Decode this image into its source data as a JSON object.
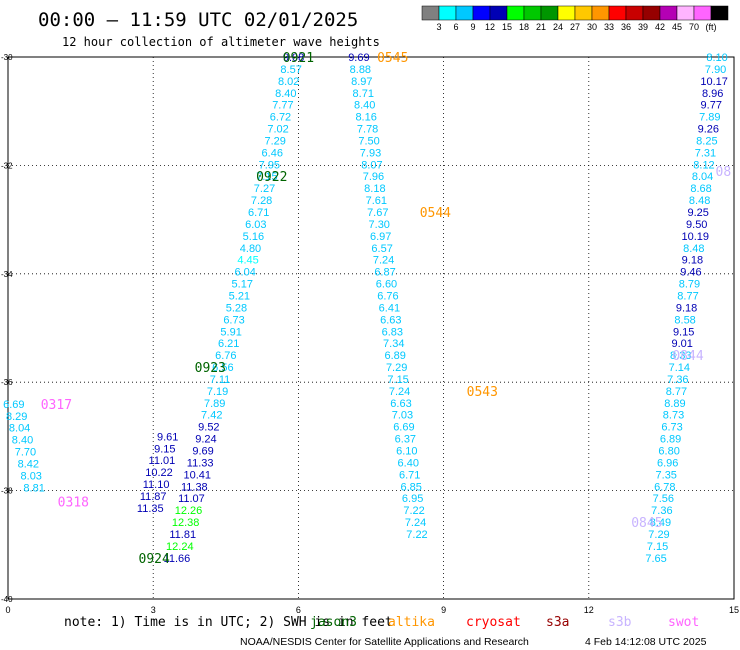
{
  "header": {
    "title": "00:00 – 11:59 UTC 02/01/2025",
    "subtitle": "12 hour collection of altimeter wave heights"
  },
  "colorbar": {
    "colors": [
      "#808080",
      "#00ffff",
      "#00c8ff",
      "#0000ff",
      "#0000b4",
      "#00ff00",
      "#00c800",
      "#009600",
      "#ffff00",
      "#ffc800",
      "#ff9600",
      "#ff0000",
      "#c80000",
      "#960000",
      "#b400b4",
      "#ffb4ff",
      "#ff64ff",
      "#000000"
    ],
    "labels": [
      "3",
      "6",
      "9",
      "12",
      "15",
      "18",
      "21",
      "24",
      "27",
      "30",
      "33",
      "36",
      "39",
      "42",
      "45",
      "70",
      "(ft)"
    ]
  },
  "chart_data": {
    "type": "scatter",
    "xlim": [
      0,
      15
    ],
    "ylim": [
      -40,
      -30
    ],
    "x_ticks": [
      "0",
      "3",
      "6",
      "9",
      "12",
      "15"
    ],
    "y_ticks": [
      "-30",
      "-32",
      "-34",
      "-36",
      "-38",
      "-40"
    ],
    "grid": true,
    "tracks": [
      {
        "name": "jason3",
        "color": "#006400",
        "values": [
          [
            5.9,
            -30.0,
            "9.08",
            "#0000b4"
          ],
          [
            5.85,
            -30.22,
            "8.57",
            "#00c8ff"
          ],
          [
            5.8,
            -30.44,
            "8.02",
            "#00c8ff"
          ],
          [
            5.74,
            -30.66,
            "8.40",
            "#00c8ff"
          ],
          [
            5.68,
            -30.88,
            "7.77",
            "#00c8ff"
          ],
          [
            5.63,
            -31.1,
            "6.72",
            "#00c8ff"
          ],
          [
            5.58,
            -31.32,
            "7.02",
            "#00c8ff"
          ],
          [
            5.52,
            -31.54,
            "7.29",
            "#00c8ff"
          ],
          [
            5.46,
            -31.76,
            "6.46",
            "#00c8ff"
          ],
          [
            5.4,
            -31.98,
            "7.95",
            "#00c8ff"
          ],
          [
            5.35,
            -32.2,
            "7.15",
            "#00c8ff"
          ],
          [
            5.3,
            -32.42,
            "7.27",
            "#00c8ff"
          ],
          [
            5.24,
            -32.64,
            "7.28",
            "#00c8ff"
          ],
          [
            5.18,
            -32.86,
            "6.71",
            "#00c8ff"
          ],
          [
            5.12,
            -33.08,
            "6.03",
            "#00c8ff"
          ],
          [
            5.07,
            -33.3,
            "5.16",
            "#00c8ff"
          ],
          [
            5.01,
            -33.52,
            "4.80",
            "#00c8ff"
          ],
          [
            4.96,
            -33.74,
            "4.45",
            "#00ffff"
          ],
          [
            4.9,
            -33.96,
            "6.04",
            "#00c8ff"
          ],
          [
            4.84,
            -34.18,
            "5.17",
            "#00c8ff"
          ],
          [
            4.78,
            -34.4,
            "5.21",
            "#00c8ff"
          ],
          [
            4.72,
            -34.62,
            "5.28",
            "#00c8ff"
          ],
          [
            4.67,
            -34.84,
            "6.73",
            "#00c8ff"
          ],
          [
            4.61,
            -35.06,
            "5.91",
            "#00c8ff"
          ],
          [
            4.56,
            -35.28,
            "6.21",
            "#00c8ff"
          ],
          [
            4.5,
            -35.5,
            "6.76",
            "#00c8ff"
          ],
          [
            4.44,
            -35.72,
            "6.56",
            "#00c8ff"
          ],
          [
            4.38,
            -35.94,
            "7.11",
            "#00c8ff"
          ],
          [
            4.33,
            -36.16,
            "7.19",
            "#00c8ff"
          ],
          [
            4.27,
            -36.38,
            "7.89",
            "#00c8ff"
          ],
          [
            4.21,
            -36.6,
            "7.42",
            "#00c8ff"
          ],
          [
            4.15,
            -36.82,
            "9.52",
            "#0000b4"
          ],
          [
            4.09,
            -37.04,
            "9.24",
            "#0000b4"
          ],
          [
            4.03,
            -37.26,
            "9.69",
            "#0000b4"
          ],
          [
            3.97,
            -37.48,
            "11.33",
            "#0000b4"
          ],
          [
            3.91,
            -37.7,
            "10.41",
            "#0000b4"
          ],
          [
            3.85,
            -37.92,
            "11.38",
            "#0000b4"
          ],
          [
            3.79,
            -38.14,
            "11.07",
            "#0000b4"
          ],
          [
            3.73,
            -38.36,
            "12.26",
            "#00ff00"
          ],
          [
            3.67,
            -38.58,
            "12.38",
            "#00ff00"
          ],
          [
            3.61,
            -38.8,
            "11.81",
            "#0000b4"
          ],
          [
            3.55,
            -39.02,
            "12.24",
            "#00ff00"
          ],
          [
            3.49,
            -39.24,
            "11.66",
            "#0000b4"
          ],
          [
            3.3,
            -37.0,
            "9.61",
            "#0000b4"
          ],
          [
            3.24,
            -37.22,
            "9.15",
            "#0000b4"
          ],
          [
            3.18,
            -37.44,
            "11.01",
            "#0000b4"
          ],
          [
            3.12,
            -37.66,
            "10.22",
            "#0000b4"
          ],
          [
            3.06,
            -37.88,
            "11.10",
            "#0000b4"
          ],
          [
            3.0,
            -38.1,
            "11.87",
            "#0000b4"
          ],
          [
            2.94,
            -38.32,
            "11.35",
            "#0000b4"
          ]
        ],
        "time_labels": [
          [
            6.0,
            -30.0,
            "0921"
          ],
          [
            5.45,
            -32.2,
            "0922"
          ],
          [
            4.18,
            -35.72,
            "0923"
          ],
          [
            3.02,
            -39.24,
            "0924"
          ]
        ]
      },
      {
        "name": "altika",
        "color": "#ff9600",
        "values": [
          [
            7.25,
            -30.0,
            "9.69",
            "#0000b4"
          ],
          [
            7.28,
            -30.22,
            "8.88",
            "#00c8ff"
          ],
          [
            7.31,
            -30.44,
            "8.97",
            "#00c8ff"
          ],
          [
            7.34,
            -30.66,
            "8.71",
            "#00c8ff"
          ],
          [
            7.37,
            -30.88,
            "8.40",
            "#00c8ff"
          ],
          [
            7.4,
            -31.1,
            "8.16",
            "#00c8ff"
          ],
          [
            7.43,
            -31.32,
            "7.78",
            "#00c8ff"
          ],
          [
            7.46,
            -31.54,
            "7.50",
            "#00c8ff"
          ],
          [
            7.49,
            -31.76,
            "7.93",
            "#00c8ff"
          ],
          [
            7.52,
            -31.98,
            "8.07",
            "#00c8ff"
          ],
          [
            7.55,
            -32.2,
            "7.96",
            "#00c8ff"
          ],
          [
            7.58,
            -32.42,
            "8.18",
            "#00c8ff"
          ],
          [
            7.61,
            -32.64,
            "7.61",
            "#00c8ff"
          ],
          [
            7.64,
            -32.86,
            "7.67",
            "#00c8ff"
          ],
          [
            7.67,
            -33.08,
            "7.30",
            "#00c8ff"
          ],
          [
            7.7,
            -33.3,
            "6.97",
            "#00c8ff"
          ],
          [
            7.73,
            -33.52,
            "6.57",
            "#00c8ff"
          ],
          [
            7.76,
            -33.74,
            "7.24",
            "#00c8ff"
          ],
          [
            7.79,
            -33.96,
            "6.87",
            "#00c8ff"
          ],
          [
            7.82,
            -34.18,
            "6.60",
            "#00c8ff"
          ],
          [
            7.85,
            -34.4,
            "6.76",
            "#00c8ff"
          ],
          [
            7.88,
            -34.62,
            "6.41",
            "#00c8ff"
          ],
          [
            7.91,
            -34.84,
            "6.63",
            "#00c8ff"
          ],
          [
            7.94,
            -35.06,
            "6.83",
            "#00c8ff"
          ],
          [
            7.97,
            -35.28,
            "7.34",
            "#00c8ff"
          ],
          [
            8.0,
            -35.5,
            "6.89",
            "#00c8ff"
          ],
          [
            8.03,
            -35.72,
            "7.29",
            "#00c8ff"
          ],
          [
            8.06,
            -35.94,
            "7.15",
            "#00c8ff"
          ],
          [
            8.09,
            -36.16,
            "7.24",
            "#00c8ff"
          ],
          [
            8.12,
            -36.38,
            "6.63",
            "#00c8ff"
          ],
          [
            8.15,
            -36.6,
            "7.03",
            "#00c8ff"
          ],
          [
            8.18,
            -36.82,
            "6.69",
            "#00c8ff"
          ],
          [
            8.21,
            -37.04,
            "6.37",
            "#00c8ff"
          ],
          [
            8.24,
            -37.26,
            "6.10",
            "#00c8ff"
          ],
          [
            8.27,
            -37.48,
            "6.40",
            "#00c8ff"
          ],
          [
            8.3,
            -37.7,
            "6.71",
            "#00c8ff"
          ],
          [
            8.33,
            -37.92,
            "6.85",
            "#00c8ff"
          ],
          [
            8.36,
            -38.14,
            "6.95",
            "#00c8ff"
          ],
          [
            8.39,
            -38.36,
            "7.22",
            "#00c8ff"
          ],
          [
            8.42,
            -38.58,
            "7.24",
            "#00c8ff"
          ],
          [
            8.45,
            -38.8,
            "7.22",
            "#00c8ff"
          ]
        ],
        "time_labels": [
          [
            7.95,
            -30.0,
            "0545"
          ],
          [
            8.83,
            -32.86,
            "0544"
          ],
          [
            9.8,
            -36.16,
            "0543"
          ]
        ]
      },
      {
        "name": "s3b",
        "color": "#c8b4ff",
        "values": [
          [
            14.65,
            -30.0,
            "8.10",
            "#00c8ff"
          ],
          [
            14.62,
            -30.22,
            "7.90",
            "#00c8ff"
          ],
          [
            14.59,
            -30.44,
            "10.17",
            "#0000b4"
          ],
          [
            14.56,
            -30.66,
            "8.96",
            "#0000b4"
          ],
          [
            14.53,
            -30.88,
            "9.77",
            "#0000b4"
          ],
          [
            14.5,
            -31.1,
            "7.89",
            "#00c8ff"
          ],
          [
            14.47,
            -31.32,
            "9.26",
            "#0000b4"
          ],
          [
            14.44,
            -31.54,
            "8.25",
            "#00c8ff"
          ],
          [
            14.41,
            -31.76,
            "7.31",
            "#00c8ff"
          ],
          [
            14.38,
            -31.98,
            "8.12",
            "#00c8ff"
          ],
          [
            14.35,
            -32.2,
            "8.04",
            "#00c8ff"
          ],
          [
            14.32,
            -32.42,
            "8.68",
            "#00c8ff"
          ],
          [
            14.29,
            -32.64,
            "8.48",
            "#00c8ff"
          ],
          [
            14.26,
            -32.86,
            "9.25",
            "#0000b4"
          ],
          [
            14.23,
            -33.08,
            "9.50",
            "#0000b4"
          ],
          [
            14.2,
            -33.3,
            "10.19",
            "#0000b4"
          ],
          [
            14.17,
            -33.52,
            "8.48",
            "#00c8ff"
          ],
          [
            14.14,
            -33.74,
            "9.18",
            "#0000b4"
          ],
          [
            14.11,
            -33.96,
            "9.46",
            "#0000b4"
          ],
          [
            14.08,
            -34.18,
            "8.79",
            "#00c8ff"
          ],
          [
            14.05,
            -34.4,
            "8.77",
            "#00c8ff"
          ],
          [
            14.02,
            -34.62,
            "9.18",
            "#0000b4"
          ],
          [
            13.99,
            -34.84,
            "8.58",
            "#00c8ff"
          ],
          [
            13.96,
            -35.06,
            "9.15",
            "#0000b4"
          ],
          [
            13.93,
            -35.28,
            "9.01",
            "#0000b4"
          ],
          [
            13.9,
            -35.5,
            "8.33",
            "#00c8ff"
          ],
          [
            13.87,
            -35.72,
            "7.14",
            "#00c8ff"
          ],
          [
            13.84,
            -35.94,
            "7.36",
            "#00c8ff"
          ],
          [
            13.81,
            -36.16,
            "8.77",
            "#00c8ff"
          ],
          [
            13.78,
            -36.38,
            "8.89",
            "#00c8ff"
          ],
          [
            13.75,
            -36.6,
            "8.73",
            "#00c8ff"
          ],
          [
            13.72,
            -36.82,
            "6.73",
            "#00c8ff"
          ],
          [
            13.69,
            -37.04,
            "6.89",
            "#00c8ff"
          ],
          [
            13.66,
            -37.26,
            "6.80",
            "#00c8ff"
          ],
          [
            13.63,
            -37.48,
            "6.96",
            "#00c8ff"
          ],
          [
            13.6,
            -37.7,
            "7.35",
            "#00c8ff"
          ],
          [
            13.57,
            -37.92,
            "6.78",
            "#00c8ff"
          ],
          [
            13.54,
            -38.14,
            "7.56",
            "#00c8ff"
          ],
          [
            13.51,
            -38.36,
            "7.36",
            "#00c8ff"
          ],
          [
            13.48,
            -38.58,
            "8.49",
            "#00c8ff"
          ],
          [
            13.45,
            -38.8,
            "7.29",
            "#00c8ff"
          ],
          [
            13.42,
            -39.02,
            "7.15",
            "#00c8ff"
          ],
          [
            13.39,
            -39.24,
            "7.65",
            "#00c8ff"
          ]
        ],
        "time_labels": [
          [
            14.78,
            -32.1,
            "08"
          ],
          [
            14.05,
            -35.5,
            "0844"
          ],
          [
            13.2,
            -38.58,
            "0845"
          ]
        ]
      },
      {
        "name": "swot",
        "color": "#ff64ff",
        "values": [
          [
            0.12,
            -36.4,
            "6.69",
            "#00c8ff"
          ],
          [
            0.18,
            -36.62,
            "8.29",
            "#00c8ff"
          ],
          [
            0.24,
            -36.84,
            "8.04",
            "#00c8ff"
          ],
          [
            0.3,
            -37.06,
            "8.40",
            "#00c8ff"
          ],
          [
            0.36,
            -37.28,
            "7.70",
            "#00c8ff"
          ],
          [
            0.42,
            -37.5,
            "8.42",
            "#00c8ff"
          ],
          [
            0.48,
            -37.72,
            "8.03",
            "#00c8ff"
          ],
          [
            0.54,
            -37.94,
            "8.81",
            "#00c8ff"
          ]
        ],
        "time_labels": [
          [
            1.0,
            -36.4,
            "0317"
          ],
          [
            1.35,
            -38.2,
            "0318"
          ]
        ]
      }
    ]
  },
  "footer": {
    "note": "note: 1) Time is in UTC; 2) SWH is in feet",
    "legend": [
      {
        "name": "jason3",
        "color": "#006400"
      },
      {
        "name": "altika",
        "color": "#ff9600"
      },
      {
        "name": "cryosat",
        "color": "#ff0000"
      },
      {
        "name": "s3a",
        "color": "#960000"
      },
      {
        "name": "s3b",
        "color": "#c8b4ff"
      },
      {
        "name": "swot",
        "color": "#ff64ff"
      }
    ],
    "credit": "NOAA/NESDIS Center for Satellite Applications and Research",
    "timestamp": "4 Feb 14:12:08 UTC 2025"
  }
}
